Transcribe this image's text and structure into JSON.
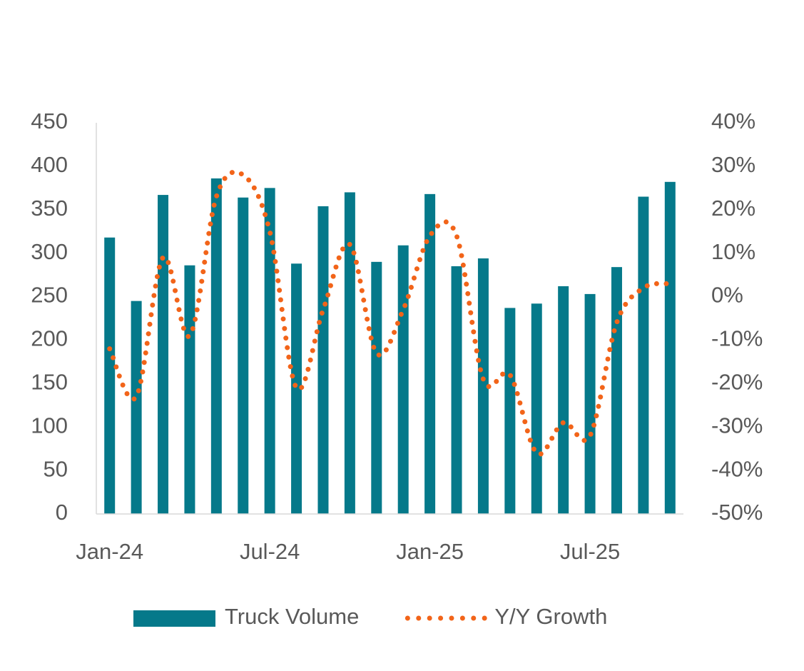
{
  "chart_data": {
    "type": "bar_line",
    "categories": [
      "Jan-24",
      null,
      null,
      null,
      null,
      null,
      "Jul-24",
      null,
      null,
      null,
      null,
      null,
      "Jan-25",
      null,
      null,
      null,
      null,
      null,
      "Jul-25",
      null,
      null,
      null
    ],
    "series": [
      {
        "name": "Truck Volume",
        "type": "bar",
        "color": "#05798a",
        "values": [
          318,
          245,
          367,
          286,
          386,
          364,
          375,
          288,
          354,
          370,
          290,
          309,
          368,
          285,
          294,
          237,
          242,
          262,
          253,
          284,
          365,
          382
        ]
      },
      {
        "name": "Y/Y Growth",
        "type": "line",
        "axis": "y2",
        "color": "#f26419",
        "line_style": "dotted",
        "values": [
          -12,
          -23,
          9,
          -9,
          23,
          28,
          15,
          -21,
          -3,
          12,
          -13,
          -3,
          14,
          14,
          -19,
          -18,
          -36,
          -29,
          -32,
          -6,
          2,
          3
        ]
      }
    ],
    "ylim": [
      0,
      450
    ],
    "yticks": [
      0,
      50,
      100,
      150,
      200,
      250,
      300,
      350,
      400,
      450
    ],
    "y2lim": [
      -50,
      40
    ],
    "y2ticks": [
      {
        "value": -50,
        "label": "-50%"
      },
      {
        "value": -40,
        "label": "-40%"
      },
      {
        "value": -30,
        "label": "-30%"
      },
      {
        "value": -20,
        "label": "-20%"
      },
      {
        "value": -10,
        "label": "-10%"
      },
      {
        "value": 0,
        "label": "0%"
      },
      {
        "value": 10,
        "label": "10%"
      },
      {
        "value": 20,
        "label": "20%"
      },
      {
        "value": 30,
        "label": "30%"
      },
      {
        "value": 40,
        "label": "40%"
      }
    ],
    "grid": false,
    "legend": "bottom"
  }
}
